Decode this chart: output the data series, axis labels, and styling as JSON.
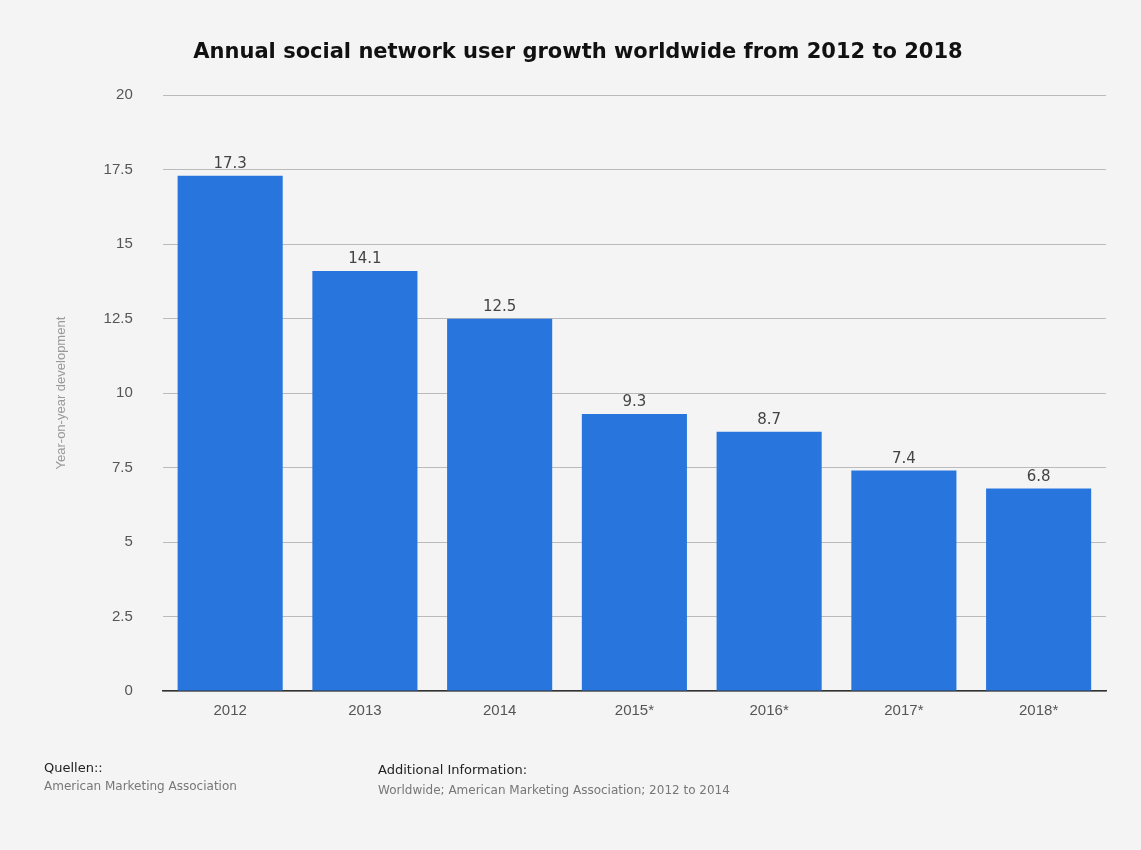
{
  "chart_data": {
    "type": "bar",
    "title": "Annual social network user growth worldwide from 2012 to 2018",
    "ylabel": "Year-on-year development",
    "categories": [
      "2012",
      "2013",
      "2014",
      "2015*",
      "2016*",
      "2017*",
      "2018*"
    ],
    "values": [
      17.3,
      14.1,
      12.5,
      9.3,
      8.7,
      7.4,
      6.8
    ],
    "color": "#2876dd",
    "ylim": [
      0,
      20
    ],
    "yticks": [
      0,
      2.5,
      5,
      7.5,
      10,
      12.5,
      15,
      17.5,
      20
    ],
    "grid": "y",
    "data_labels": true,
    "annotations": [
      "Quellen::",
      "American Marketing Association",
      "Additional Information:",
      "Worldwide; American Marketing Association; 2012 to 2014"
    ]
  }
}
